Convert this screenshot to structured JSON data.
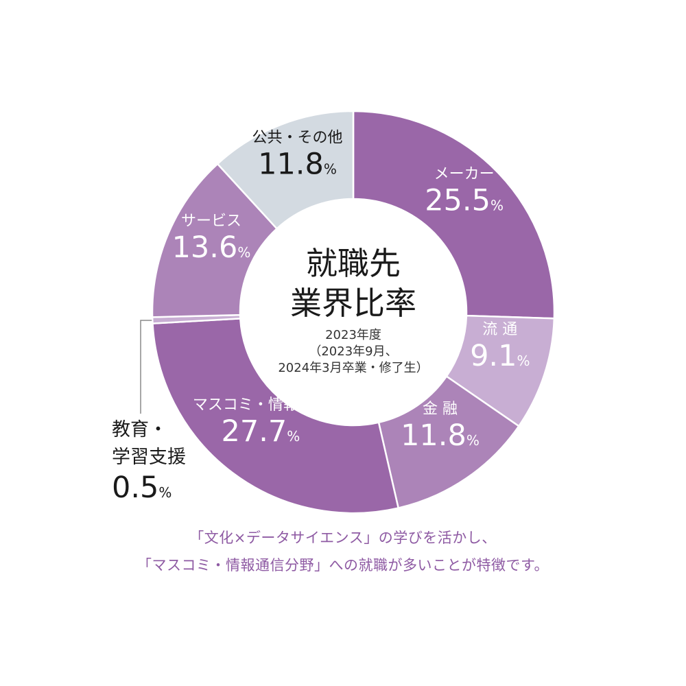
{
  "chart_data": {
    "type": "pie",
    "title": "就職先業界比率",
    "title_lines": [
      "就職先",
      "業界比率"
    ],
    "subtitle_lines": [
      "2023年度",
      "（2023年9月、",
      "2024年3月卒業・修了生）"
    ],
    "unit": "%",
    "slices": [
      {
        "label_lines": [
          "メーカー"
        ],
        "value": 25.5,
        "value_text": "25.5",
        "color": "#9a67a8",
        "label_color": "#ffffff"
      },
      {
        "label_lines": [
          "流 通"
        ],
        "value": 9.1,
        "value_text": "9.1",
        "color": "#c8aed3",
        "label_color": "#ffffff"
      },
      {
        "label_lines": [
          "金 融"
        ],
        "value": 11.8,
        "value_text": "11.8",
        "color": "#ac84b8",
        "label_color": "#ffffff"
      },
      {
        "label_lines": [
          "マスコミ・情報通信"
        ],
        "value": 27.7,
        "value_text": "27.7",
        "color": "#9a67a8",
        "label_color": "#ffffff"
      },
      {
        "label_lines": [
          "教育・",
          "学習支援"
        ],
        "value": 0.5,
        "value_text": "0.5",
        "color": "#c8aed3",
        "label_color": "#1a1a1a",
        "external": true
      },
      {
        "label_lines": [
          "サービス"
        ],
        "value": 13.6,
        "value_text": "13.6",
        "color": "#ac84b8",
        "label_color": "#ffffff"
      },
      {
        "label_lines": [
          "公共・その他"
        ],
        "value": 11.8,
        "value_text": "11.8",
        "color": "#d3dae1",
        "label_color": "#1a1a1a"
      }
    ]
  },
  "caption": {
    "line1": "「文化×データサイエンス」の学びを活かし、",
    "line2": "「マスコミ・情報通信分野」への就職が多いことが特徴です。"
  }
}
